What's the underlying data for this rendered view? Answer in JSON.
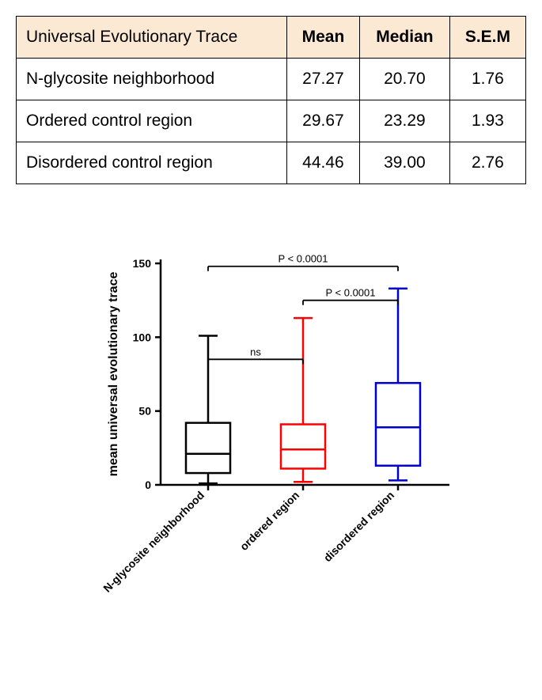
{
  "table": {
    "header_bg": "#fce9d4",
    "columns": [
      "Universal Evolutionary Trace",
      "Mean",
      "Median",
      "S.E.M"
    ],
    "rows": [
      [
        "N-glycosite neighborhood",
        "27.27",
        "20.70",
        "1.76"
      ],
      [
        "Ordered control region",
        "29.67",
        "23.29",
        "1.93"
      ],
      [
        "Disordered control region",
        "44.46",
        "39.00",
        "2.76"
      ]
    ]
  },
  "chart": {
    "type": "boxplot",
    "ylabel": "mean universal evolutionary trace",
    "ylim": [
      0,
      150
    ],
    "yticks": [
      0,
      50,
      100,
      150
    ],
    "axis_color": "#000000",
    "axis_width": 2.5,
    "label_fontsize": 16,
    "tick_fontsize": 14,
    "categories": [
      "N-glycosite neighborhood",
      "ordered region",
      "disordered region"
    ],
    "boxes": [
      {
        "label": "N-glycosite neighborhood",
        "color": "#000000",
        "whisker_low": 1,
        "q1": 8,
        "median": 21,
        "q3": 42,
        "whisker_high": 101
      },
      {
        "label": "ordered region",
        "color": "#ff0000",
        "whisker_low": 2,
        "q1": 11,
        "median": 24,
        "q3": 41,
        "whisker_high": 113
      },
      {
        "label": "disordered region",
        "color": "#0000cc",
        "whisker_low": 3,
        "q1": 13,
        "median": 39,
        "q3": 69,
        "whisker_high": 133
      }
    ],
    "annotations": [
      {
        "from": 0,
        "to": 1,
        "text": "ns",
        "y": 85
      },
      {
        "from": 1,
        "to": 2,
        "text": "P < 0.0001",
        "y": 125
      },
      {
        "from": 0,
        "to": 2,
        "text": "P < 0.0001",
        "y": 148
      }
    ],
    "box_line_width": 2.5,
    "box_half_width": 28
  }
}
